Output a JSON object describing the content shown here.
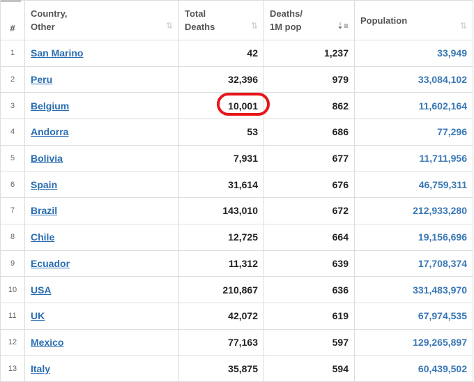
{
  "table": {
    "header": [
      [
        "#"
      ],
      [
        "Country,",
        "Other"
      ],
      [
        "Total",
        "Deaths"
      ],
      [
        "Deaths/",
        "1M pop"
      ],
      [
        "Population"
      ]
    ],
    "rows": [
      [
        "1",
        "San Marino",
        "42",
        "1,237",
        "33,949"
      ],
      [
        "2",
        "Peru",
        "32,396",
        "979",
        "33,084,102"
      ],
      [
        "3",
        "Belgium",
        "10,001",
        "862",
        "11,602,164"
      ],
      [
        "4",
        "Andorra",
        "53",
        "686",
        "77,296"
      ],
      [
        "5",
        "Bolivia",
        "7,931",
        "677",
        "11,711,956"
      ],
      [
        "6",
        "Spain",
        "31,614",
        "676",
        "46,759,311"
      ],
      [
        "7",
        "Brazil",
        "143,010",
        "672",
        "212,933,280"
      ],
      [
        "8",
        "Chile",
        "12,725",
        "664",
        "19,156,696"
      ],
      [
        "9",
        "Ecuador",
        "11,312",
        "639",
        "17,708,374"
      ],
      [
        "10",
        "USA",
        "210,867",
        "636",
        "331,483,970"
      ],
      [
        "11",
        "UK",
        "42,072",
        "619",
        "67,974,535"
      ],
      [
        "12",
        "Mexico",
        "77,163",
        "597",
        "129,265,897"
      ],
      [
        "13",
        "Italy",
        "35,875",
        "594",
        "60,439,502"
      ]
    ]
  }
}
